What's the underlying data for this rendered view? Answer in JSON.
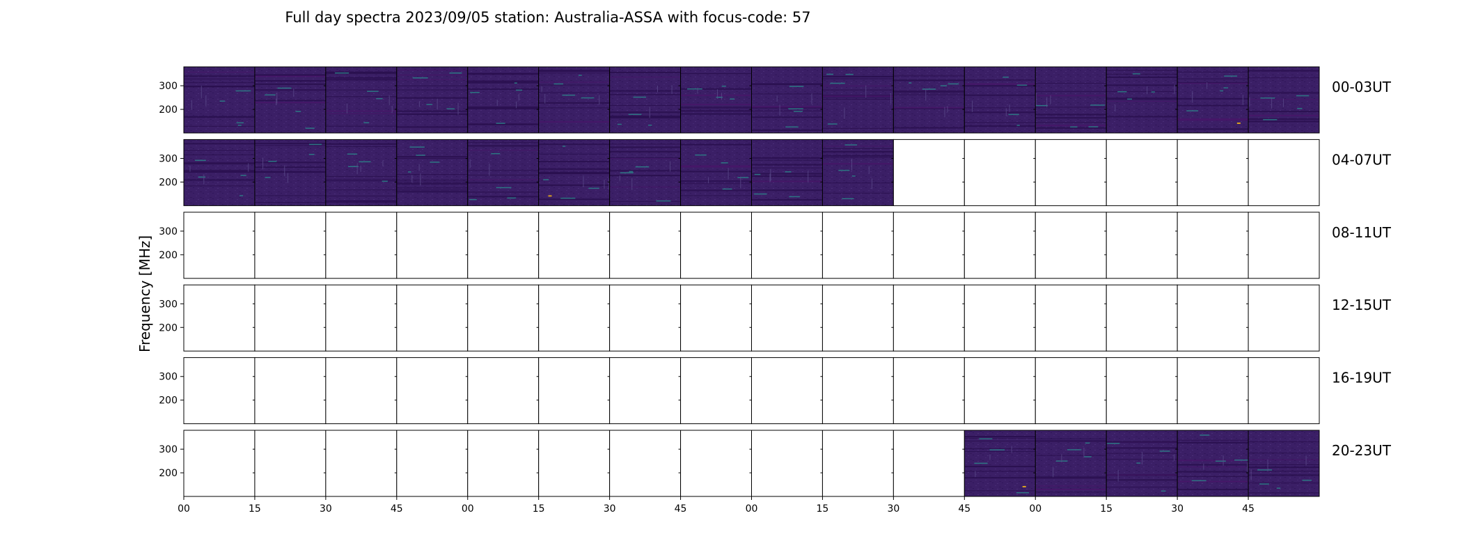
{
  "chart_data": {
    "type": "heatmap",
    "title": "Full day spectra 2023/09/05 station: Australia-ASSA with focus-code: 57",
    "ylabel": "Frequency [MHz]",
    "xlabel": "",
    "y_ticks": [
      300,
      200
    ],
    "ylim": [
      100,
      380
    ],
    "x_tick_labels": [
      "00",
      "15",
      "30",
      "45",
      "00",
      "15",
      "30",
      "45",
      "00",
      "15",
      "30",
      "45",
      "00",
      "15",
      "30",
      "45"
    ],
    "panels_per_row": 16,
    "rows": [
      {
        "label": "00-03UT",
        "filled": [
          1,
          1,
          1,
          1,
          1,
          1,
          1,
          1,
          1,
          1,
          1,
          1,
          1,
          1,
          1,
          1
        ]
      },
      {
        "label": "04-07UT",
        "filled": [
          1,
          1,
          1,
          1,
          1,
          1,
          1,
          1,
          1,
          1,
          0,
          0,
          0,
          0,
          0,
          0
        ]
      },
      {
        "label": "08-11UT",
        "filled": [
          0,
          0,
          0,
          0,
          0,
          0,
          0,
          0,
          0,
          0,
          0,
          0,
          0,
          0,
          0,
          0
        ]
      },
      {
        "label": "12-15UT",
        "filled": [
          0,
          0,
          0,
          0,
          0,
          0,
          0,
          0,
          0,
          0,
          0,
          0,
          0,
          0,
          0,
          0
        ]
      },
      {
        "label": "16-19UT",
        "filled": [
          0,
          0,
          0,
          0,
          0,
          0,
          0,
          0,
          0,
          0,
          0,
          0,
          0,
          0,
          0,
          0
        ]
      },
      {
        "label": "20-23UT",
        "filled": [
          0,
          0,
          0,
          0,
          0,
          0,
          0,
          0,
          0,
          0,
          0,
          1,
          1,
          1,
          1,
          1
        ]
      }
    ],
    "colors": {
      "spectrum_base": "#3b1f66",
      "spectrum_dark": "#2a0f4f",
      "spectrum_band": "#471668",
      "spectrum_bright": "#2a8c8c",
      "spectrum_hot": "#d8a020",
      "empty_panel": "#ffffff",
      "frame": "#000000"
    }
  }
}
